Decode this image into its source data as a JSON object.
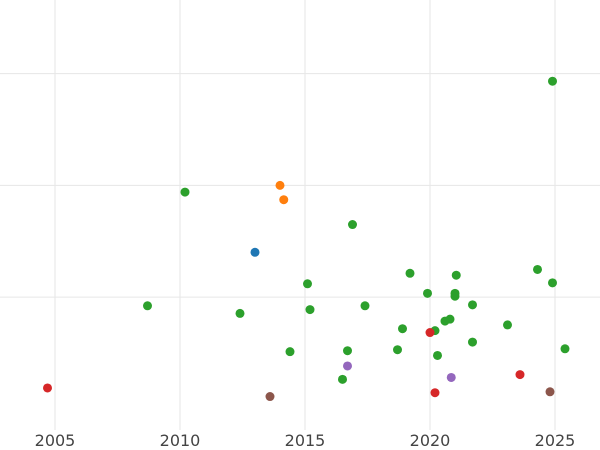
{
  "chart_data": {
    "type": "scatter",
    "title": "",
    "xlabel": "",
    "ylabel": "",
    "xlim": [
      2002.8,
      2026.8
    ],
    "ylim": [
      0,
      450
    ],
    "grid": true,
    "legend": "none",
    "x_ticks": [
      "2005",
      "2010",
      "2015",
      "2020",
      "2025"
    ],
    "y_ticks": [],
    "y_gridlines": [
      373,
      256,
      139
    ],
    "series": [
      {
        "color": "#1f77b4",
        "points": [
          [
            2013.0,
            186
          ]
        ]
      },
      {
        "color": "#ff7f0e",
        "points": [
          [
            2014.0,
            256
          ],
          [
            2014.15,
            241
          ]
        ]
      },
      {
        "color": "#2ca02c",
        "points": [
          [
            2008.7,
            130
          ],
          [
            2010.2,
            249
          ],
          [
            2012.4,
            122
          ],
          [
            2014.4,
            82
          ],
          [
            2015.1,
            153
          ],
          [
            2015.2,
            126
          ],
          [
            2016.5,
            53
          ],
          [
            2016.7,
            83
          ],
          [
            2016.9,
            215
          ],
          [
            2017.4,
            130
          ],
          [
            2018.7,
            84
          ],
          [
            2018.9,
            106
          ],
          [
            2019.2,
            164
          ],
          [
            2019.9,
            143
          ],
          [
            2020.2,
            104
          ],
          [
            2020.3,
            78
          ],
          [
            2020.6,
            114
          ],
          [
            2020.8,
            116
          ],
          [
            2021.0,
            140
          ],
          [
            2021.0,
            143
          ],
          [
            2021.05,
            162
          ],
          [
            2021.7,
            131
          ],
          [
            2021.7,
            92
          ],
          [
            2023.1,
            110
          ],
          [
            2024.3,
            168
          ],
          [
            2024.9,
            365
          ],
          [
            2024.9,
            154
          ],
          [
            2025.4,
            85
          ]
        ]
      },
      {
        "color": "#d62728",
        "points": [
          [
            2004.7,
            44
          ],
          [
            2020.0,
            102
          ],
          [
            2020.2,
            39
          ],
          [
            2023.6,
            58
          ]
        ]
      },
      {
        "color": "#9467bd",
        "points": [
          [
            2016.7,
            67
          ],
          [
            2020.85,
            55
          ]
        ]
      },
      {
        "color": "#8c564b",
        "points": [
          [
            2013.6,
            35
          ],
          [
            2024.8,
            40
          ]
        ]
      }
    ]
  }
}
